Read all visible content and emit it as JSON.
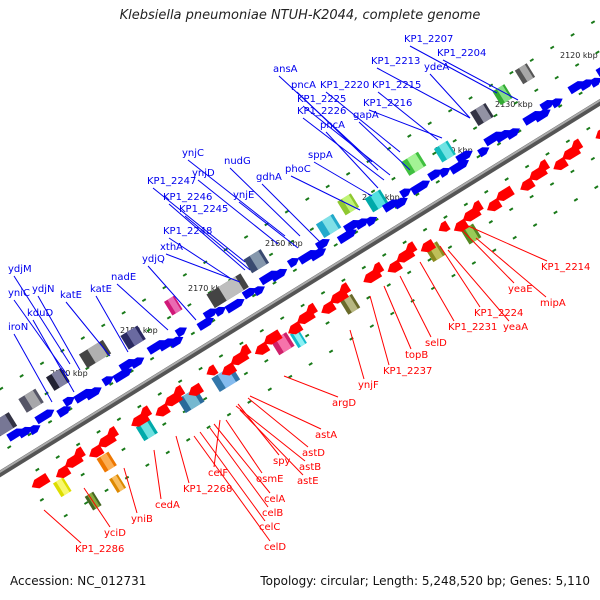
{
  "title": "Klebsiella pneumoniae NTUH-K2044, complete genome",
  "accession_label": "Accession: NC_012731",
  "summary_label": "Topology: circular; Length: 5,248,520 bp; Genes: 5,110",
  "colors": {
    "forward_gene": "#0000ee",
    "reverse_gene": "#ff0000",
    "backbone": "#777777",
    "tick": "#1a7a1a"
  },
  "kbp_ticks": [
    "2120 kbp",
    "2130 kbp",
    "2140 kbp",
    "2150 kbp",
    "2160 kbp",
    "2170 kbp",
    "2180 kbp",
    "2190 kbp"
  ],
  "forward_labels": [
    "KP1_2207",
    "KP1_2204",
    "KP1_2213",
    "ydeA",
    "ansA",
    "pncA",
    "KP1_2220",
    "KP1_2215",
    "KP1_2225",
    "KP1_2226",
    "KP1_2216",
    "pncA",
    "gapA",
    "ynjC",
    "nudG",
    "ynjD",
    "gdhA",
    "KP1_2247",
    "ynjE",
    "phoC",
    "sppA",
    "KP1_2246",
    "KP1_2245",
    "KP1_2248",
    "xthA",
    "ydjQ",
    "nadE",
    "ydjM",
    "ydjN",
    "yniC",
    "katE",
    "katE",
    "kduD",
    "iroN"
  ],
  "reverse_labels": [
    "KP1_2214",
    "yeaE",
    "mipA",
    "KP1_2224",
    "yeaA",
    "KP1_2231",
    "selD",
    "topB",
    "KP1_2237",
    "ynjF",
    "argD",
    "astA",
    "astD",
    "spy",
    "astB",
    "celF",
    "astE",
    "osmE",
    "KP1_2268",
    "celA",
    "celB",
    "cedA",
    "celC",
    "yniB",
    "celD",
    "yciD",
    "KP1_2286"
  ]
}
